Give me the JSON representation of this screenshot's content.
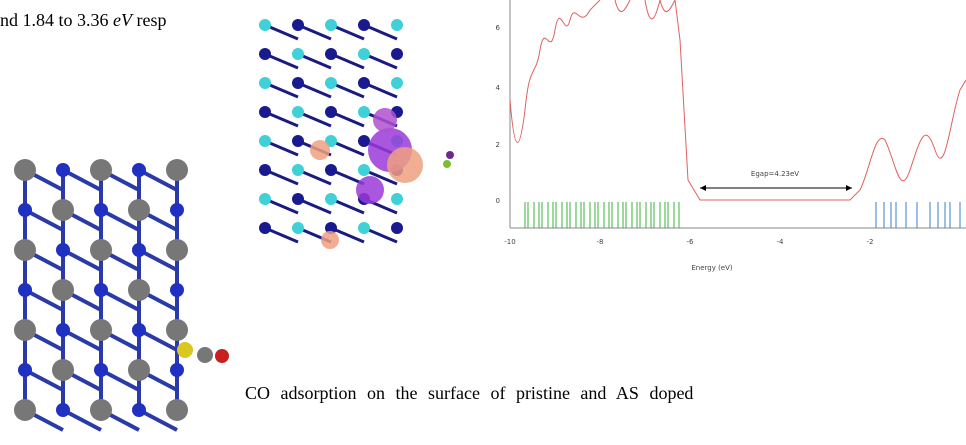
{
  "text_top": {
    "before": "nd 1.84 to 3.36 ",
    "unit": "eV",
    "after": " resp"
  },
  "figure": {
    "annotation": "Egap=4.23eV",
    "x_label": "Energy (eV)",
    "x_ticks": [
      "-10",
      "-8",
      "-6",
      "-4",
      "-2"
    ],
    "y_ticks": [
      "6",
      "4",
      "2",
      "0"
    ]
  },
  "text_bottom": "CO adsorption on the surface of pristine and AS doped"
}
